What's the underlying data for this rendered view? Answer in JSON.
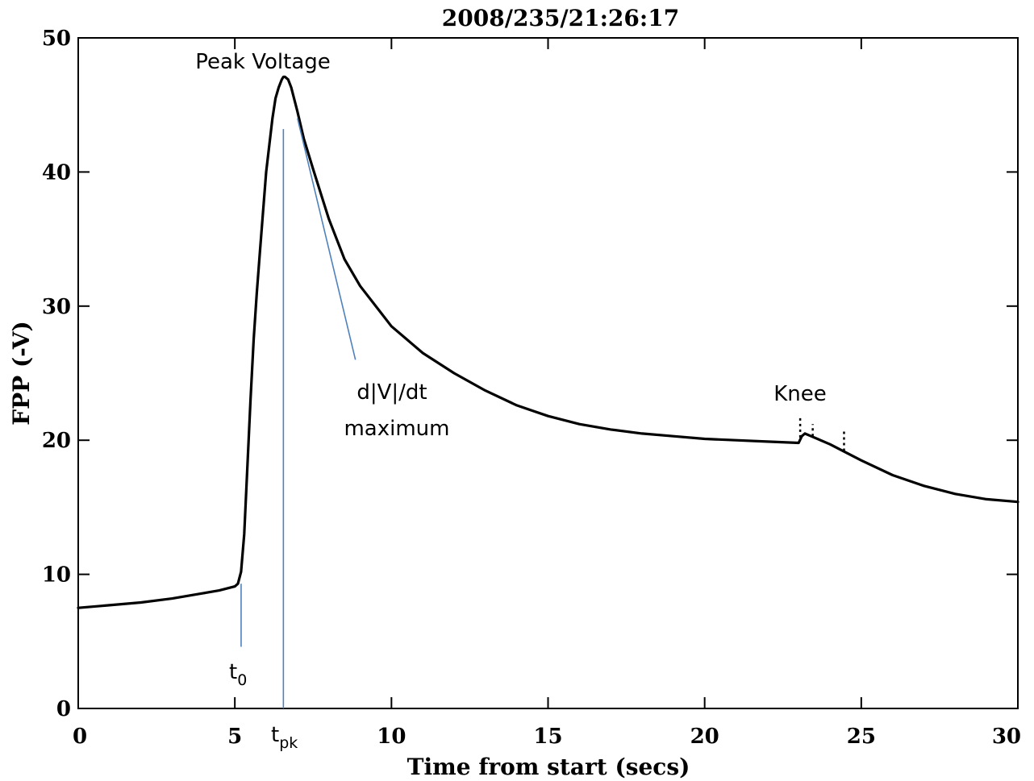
{
  "chart_data": {
    "type": "line",
    "title": "2008/235/21:26:17",
    "xlabel": "Time from start (secs)",
    "ylabel": "FPP (-V)",
    "xlim": [
      0,
      30
    ],
    "ylim": [
      0,
      50
    ],
    "xticks": [
      0,
      5,
      10,
      15,
      20,
      25,
      30
    ],
    "yticks": [
      0,
      10,
      20,
      30,
      40,
      50
    ],
    "xtick_labels": [
      "0",
      "5",
      "10",
      "15",
      "20",
      "25",
      "30"
    ],
    "ytick_labels": [
      "0",
      "10",
      "20",
      "30",
      "40",
      "50"
    ],
    "grid": false,
    "series": [
      {
        "x": [
          0,
          1,
          2,
          3,
          4,
          4.5,
          5,
          5.1,
          5.2,
          5.3,
          5.4,
          5.5,
          5.6,
          5.7,
          5.8,
          5.9,
          6.0,
          6.1,
          6.2,
          6.3,
          6.4,
          6.5,
          6.55,
          6.6,
          6.7,
          6.8,
          7.0,
          7.2,
          7.5,
          8.0,
          8.5,
          9.0,
          10,
          11,
          12,
          13,
          14,
          15,
          16,
          17,
          18,
          19,
          20,
          21,
          22,
          23.0,
          23.1,
          23.2,
          23.4,
          24,
          24.5,
          25,
          26,
          27,
          28,
          29,
          30
        ],
        "y": [
          7.5,
          7.7,
          7.9,
          8.2,
          8.6,
          8.8,
          9.1,
          9.3,
          10.2,
          13,
          18,
          23,
          27.5,
          31,
          34,
          37,
          40,
          42,
          44,
          45.5,
          46.3,
          46.9,
          47.1,
          47.1,
          46.9,
          46.3,
          44.5,
          42.5,
          40.2,
          36.5,
          33.5,
          31.5,
          28.5,
          26.5,
          25,
          23.7,
          22.6,
          21.8,
          21.2,
          20.8,
          20.5,
          20.3,
          20.1,
          20.0,
          19.9,
          19.8,
          20.3,
          20.5,
          20.3,
          19.7,
          19.1,
          18.5,
          17.4,
          16.6,
          16.0,
          15.6,
          15.4
        ]
      }
    ],
    "annotations": {
      "peak": "Peak Voltage",
      "t0_base": "t",
      "t0_sub": "0",
      "tpk_base": "t",
      "tpk_sub": "pk",
      "dvdt_line1": "d|V|/dt",
      "dvdt_line2": "maximum",
      "knee": "Knee"
    },
    "marker_times": {
      "t0": 5.2,
      "tpk": 6.55
    },
    "max_slope_segment": {
      "x": [
        7.0,
        8.85
      ],
      "y": [
        44.0,
        26.0
      ]
    },
    "knee_spikes": [
      {
        "x": 23.05,
        "y": [
          20.2,
          21.8
        ]
      },
      {
        "x": 23.45,
        "y": [
          20.3,
          21.2
        ]
      },
      {
        "x": 24.45,
        "y": [
          19.2,
          20.8
        ]
      }
    ],
    "colors": {
      "data": "#000000",
      "marker": "#4f81bd",
      "axes": "#000000"
    }
  }
}
